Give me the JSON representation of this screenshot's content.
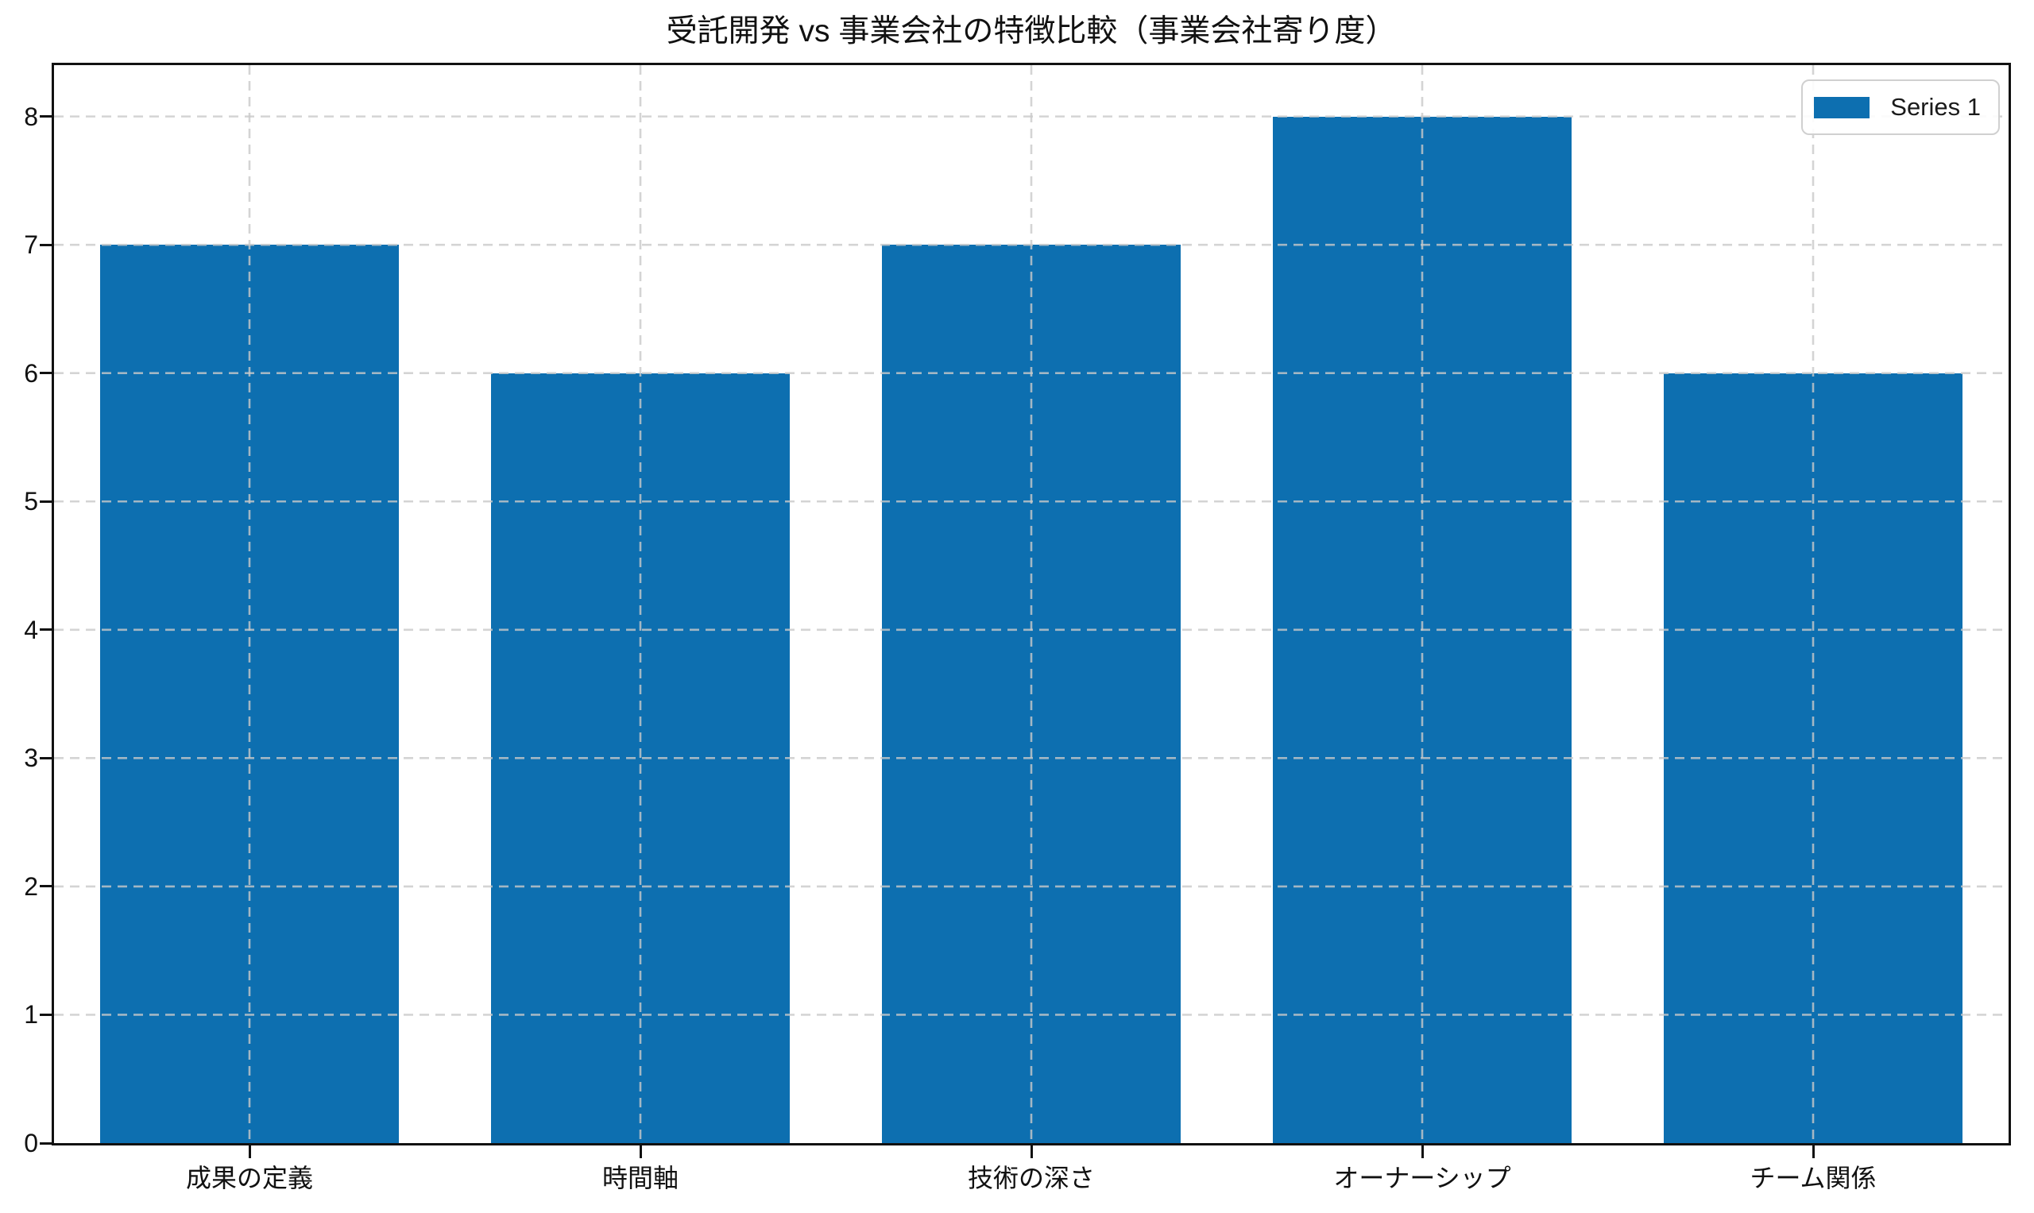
{
  "figure": {
    "background_color": "#ffffff",
    "frame_color": "#111111",
    "text_color": "#111111",
    "grid_color": "#c9c9c9"
  },
  "chart_data": {
    "type": "bar",
    "title": "受託開発 vs 事業会社の特徴比較（事業会社寄り度）",
    "categories": [
      "成果の定義",
      "時間軸",
      "技術の深さ",
      "オーナーシップ",
      "チーム関係"
    ],
    "series": [
      {
        "name": "Series 1",
        "color": "#0d6fb0",
        "values": [
          7,
          6,
          7,
          8,
          6
        ]
      }
    ],
    "xlabel": "",
    "ylabel": "",
    "ylim": [
      0,
      8.4
    ],
    "yticks": [
      0,
      1,
      2,
      3,
      4,
      5,
      6,
      7,
      8
    ],
    "grid": {
      "enabled": true,
      "axes": "both",
      "style": "dashed",
      "above_bars": true
    },
    "legend": {
      "label": "Series 1",
      "position": "upper-right"
    }
  }
}
